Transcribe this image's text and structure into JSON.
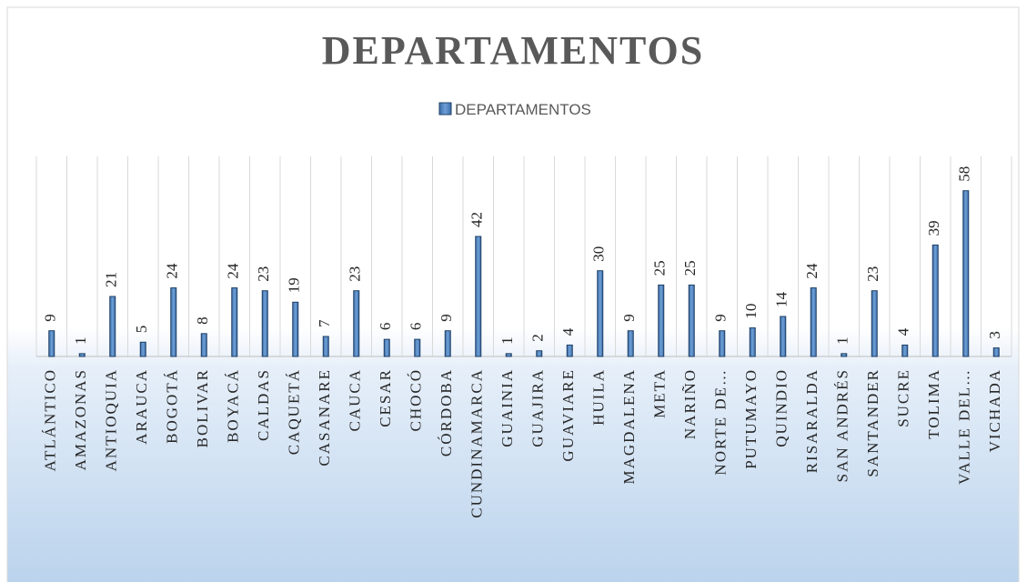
{
  "chart_data": {
    "type": "bar",
    "title": "DEPARTAMENTOS",
    "categories": [
      "ATLÁNTICO",
      "AMAZONAS",
      "ANTIOQUIA",
      "ARAUCA",
      "BOGOTÁ",
      "BOLIVAR",
      "BOYACÁ",
      "CALDAS",
      "CAQUETÁ",
      "CASANARE",
      "CAUCA",
      "CESAR",
      "CHOCÓ",
      "CÓRDOBA",
      "CUNDINAMARCA",
      "GUAINIA",
      "GUAJIRA",
      "GUAVIARE",
      "HUILA",
      "MAGDALENA",
      "META",
      "NARIÑO",
      "NORTE DE…",
      "PUTUMAYO",
      "QUINDIO",
      "RISARALDA",
      "SAN ANDRÉS",
      "SANTANDER",
      "SUCRE",
      "TOLIMA",
      "VALLE DEL…",
      "VICHADA"
    ],
    "series": [
      {
        "name": "DEPARTAMENTOS",
        "color": "#4f81bd",
        "values": [
          9,
          1,
          21,
          5,
          24,
          8,
          24,
          23,
          19,
          7,
          23,
          6,
          6,
          9,
          42,
          1,
          2,
          4,
          30,
          9,
          25,
          25,
          9,
          10,
          14,
          24,
          1,
          23,
          4,
          39,
          58,
          3
        ]
      }
    ],
    "ylim": [
      0,
      70
    ],
    "grid": true,
    "legend": "top"
  }
}
